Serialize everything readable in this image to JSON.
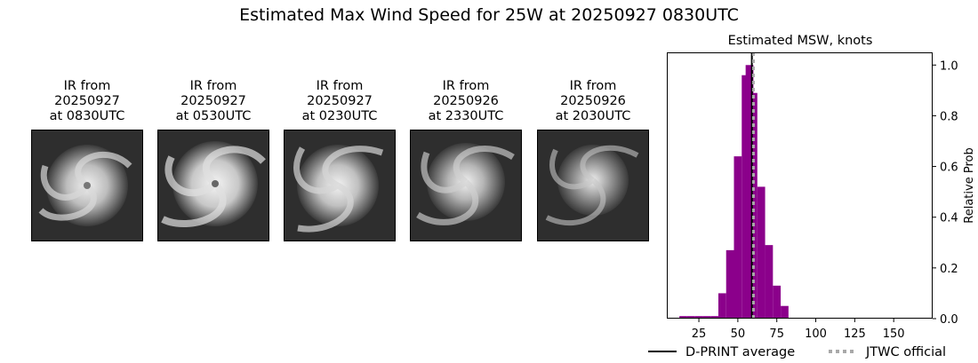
{
  "figure": {
    "title": "Estimated Max Wind Speed for 25W at 20250927 0830UTC"
  },
  "ir_panels": [
    {
      "title_line1": "IR from",
      "title_line2": "20250927",
      "title_line3": "at 0830UTC"
    },
    {
      "title_line1": "IR from",
      "title_line2": "20250927",
      "title_line3": "at 0530UTC"
    },
    {
      "title_line1": "IR from",
      "title_line2": "20250927",
      "title_line3": "at 0230UTC"
    },
    {
      "title_line1": "IR from",
      "title_line2": "20250926",
      "title_line3": "at 2330UTC"
    },
    {
      "title_line1": "IR from",
      "title_line2": "20250926",
      "title_line3": "at 2030UTC"
    }
  ],
  "chart_data": {
    "type": "bar",
    "title": "Estimated MSW, knots",
    "xlabel": "",
    "ylabel": "Relative Prob",
    "xlim": [
      5,
      175
    ],
    "ylim": [
      0,
      1.05
    ],
    "xticks": [
      25,
      50,
      75,
      100,
      125,
      150
    ],
    "yticks": [
      0.0,
      0.2,
      0.4,
      0.6,
      0.8,
      1.0
    ],
    "bin_width": 5,
    "bins": [
      {
        "x": 15,
        "y": 0.01
      },
      {
        "x": 20,
        "y": 0.01
      },
      {
        "x": 25,
        "y": 0.01
      },
      {
        "x": 30,
        "y": 0.01
      },
      {
        "x": 35,
        "y": 0.01
      },
      {
        "x": 40,
        "y": 0.1
      },
      {
        "x": 45,
        "y": 0.27
      },
      {
        "x": 50,
        "y": 0.64
      },
      {
        "x": 55,
        "y": 0.96
      },
      {
        "x": 60,
        "y": 0.89
      },
      {
        "x": 65,
        "y": 0.52
      },
      {
        "x": 70,
        "y": 0.29
      },
      {
        "x": 75,
        "y": 0.13
      },
      {
        "x": 80,
        "y": 0.05
      },
      {
        "x": 85,
        "y": 0.002
      },
      {
        "x": 90,
        "y": 0.002
      },
      {
        "x": 95,
        "y": 0.002
      },
      {
        "x": 100,
        "y": 0.002
      },
      {
        "x": 105,
        "y": 0.002
      },
      {
        "x": 110,
        "y": 0.002
      },
      {
        "x": 115,
        "y": 0.002
      },
      {
        "x": 120,
        "y": 0.002
      },
      {
        "x": 125,
        "y": 0.002
      },
      {
        "x": 130,
        "y": 0.002
      },
      {
        "x": 135,
        "y": 0.002
      },
      {
        "x": 140,
        "y": 0.002
      },
      {
        "x": 145,
        "y": 0.002
      },
      {
        "x": 150,
        "y": 0.002
      },
      {
        "x": 155,
        "y": 0.002
      },
      {
        "x": 160,
        "y": 0.002
      },
      {
        "x": 165,
        "y": 0.002
      }
    ],
    "peak_bin": {
      "x": 57.5,
      "y": 1.0
    },
    "dprint_average": 59,
    "jtwc_official": 60,
    "bar_color": "#8b008b",
    "legend": [
      {
        "label": "D-PRINT average",
        "style": "solid",
        "color": "#000000"
      },
      {
        "label": "JTWC official",
        "style": "dotted",
        "color": "#a9a9a9"
      }
    ],
    "legend_position": "bottom-right"
  }
}
